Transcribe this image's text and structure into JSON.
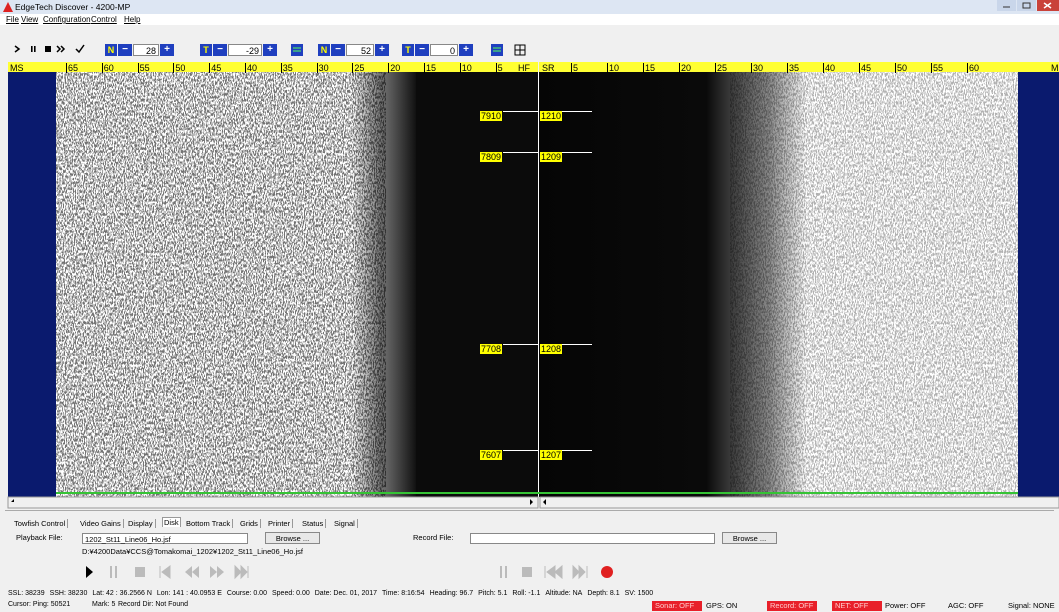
{
  "window": {
    "title": "EdgeTech Discover - 4200-MP"
  },
  "menu": [
    "File",
    "View",
    "Configuration",
    "Control",
    "Help"
  ],
  "toolbar": [
    {
      "icon": "N",
      "value": 28
    },
    {
      "icon": "T",
      "value": -29
    },
    {
      "icon": "N",
      "value": 52
    },
    {
      "icon": "T",
      "value": 0
    }
  ],
  "ruler": {
    "port": {
      "start": "MS",
      "ticks": [
        65,
        60,
        55,
        50,
        45,
        40,
        35,
        30,
        25,
        20,
        15,
        10,
        5
      ],
      "end": "HF"
    },
    "starboard": {
      "start": "SR",
      "ticks": [
        5,
        10,
        15,
        20,
        25,
        30,
        35,
        40,
        45,
        50,
        55,
        60
      ],
      "end": "M"
    }
  },
  "pings": [
    {
      "port": 7910,
      "starboard": 1210
    },
    {
      "port": 7809,
      "starboard": 1209
    },
    {
      "port": 7708,
      "starboard": 1208
    },
    {
      "port": 7607,
      "starboard": 1207
    }
  ],
  "tabs": [
    "Towfish Control",
    "Video Gains",
    "Display",
    "Disk",
    "Bottom Track",
    "Grids",
    "Printer",
    "Status",
    "Signal"
  ],
  "selected_tab": 3,
  "disk": {
    "playback_label": "Playback File:",
    "playback_file": "1202_St11_Line06_Ho.jsf",
    "playback_browse": "Browse ...",
    "path": "D:¥4200Data¥CCS@Tomakomai_1202¥1202_St11_Line06_Ho.jsf",
    "record_label": "Record File:",
    "record_browse": "Browse ..."
  },
  "status_line": [
    "SSL: 38239",
    "SSH: 38230",
    "Lat: 42 : 36.2566 N",
    "Lon: 141 : 40.0953 E",
    "Course: 0.00",
    "Speed: 0.00",
    "Date: Dec. 01, 2017",
    "Time: 8:16:54",
    "Heading: 96.7",
    "Pitch: 5.1",
    "Roll: -1.1",
    "Altitude: NA",
    "Depth: 8.1",
    "SV: 1500"
  ],
  "cursor_line": [
    "Cursor: Ping: 50521",
    "Mark: 5",
    "Record Dir: Not Found"
  ],
  "indicators": [
    {
      "text": "Sonar: OFF",
      "alert": true
    },
    {
      "text": "GPS: ON",
      "alert": false
    },
    {
      "text": "Record: OFF",
      "alert": true
    },
    {
      "text": "NET: OFF",
      "alert": true
    },
    {
      "text": "Power: OFF",
      "alert": false
    },
    {
      "text": "AGC: OFF",
      "alert": false
    },
    {
      "text": "Signal: NONE",
      "alert": false
    }
  ]
}
